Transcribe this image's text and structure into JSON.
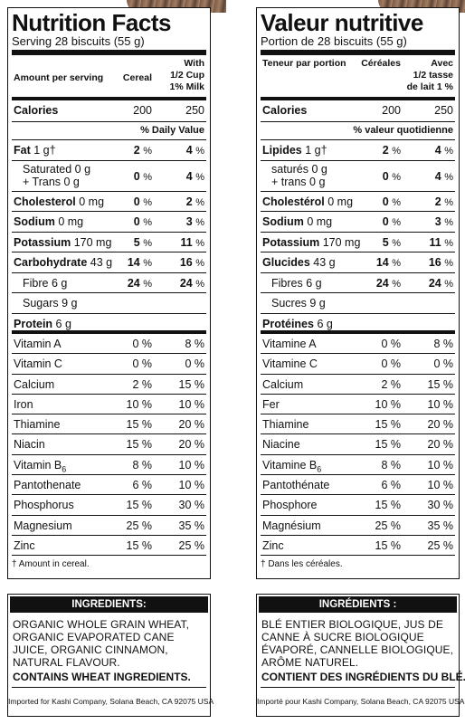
{
  "en": {
    "title": "Nutrition Facts",
    "serving": "Serving 28 biscuits (55 g)",
    "header": {
      "amount": "Amount per serving",
      "col1": "Cereal",
      "col2_l1": "With",
      "col2_l2": "1/2 Cup",
      "col2_l3": "1% Milk"
    },
    "calories": {
      "label": "Calories",
      "v1": "200",
      "v2": "250"
    },
    "daily_value": "% Daily Value",
    "nutrients": [
      {
        "label": "Fat",
        "amount": "1 g†",
        "v1": "2",
        "v2": "4"
      },
      {
        "label_l1": "Saturated 0 g",
        "label_l2": "+ Trans 0 g",
        "v1": "0",
        "v2": "4"
      },
      {
        "label": "Cholesterol",
        "amount": "0 mg",
        "v1": "0",
        "v2": "2"
      },
      {
        "label": "Sodium",
        "amount": "0 mg",
        "v1": "0",
        "v2": "3"
      },
      {
        "label": "Potassium",
        "amount": "170 mg",
        "v1": "5",
        "v2": "11"
      },
      {
        "label": "Carbohydrate",
        "amount": "43 g",
        "v1": "14",
        "v2": "16"
      },
      {
        "label": "Fibre 6 g",
        "v1": "24",
        "v2": "24"
      },
      {
        "label": "Sugars 9 g"
      },
      {
        "label": "Protein",
        "amount": "6 g"
      }
    ],
    "vitamins": [
      {
        "label": "Vitamin A",
        "v1": "0 %",
        "v2": "8 %"
      },
      {
        "label": "Vitamin C",
        "v1": "0 %",
        "v2": "0 %"
      },
      {
        "label": "Calcium",
        "v1": "2 %",
        "v2": "15 %"
      },
      {
        "label": "Iron",
        "v1": "10 %",
        "v2": "10 %"
      },
      {
        "label": "Thiamine",
        "v1": "15 %",
        "v2": "20 %"
      },
      {
        "label": "Niacin",
        "v1": "15 %",
        "v2": "20 %"
      },
      {
        "label": "Vitamin B",
        "sub": "6",
        "v1": "8 %",
        "v2": "10 %"
      },
      {
        "label": "Pantothenate",
        "v1": "6 %",
        "v2": "10 %"
      },
      {
        "label": "Phosphorus",
        "v1": "15 %",
        "v2": "30 %"
      },
      {
        "label": "Magnesium",
        "v1": "25 %",
        "v2": "35 %"
      },
      {
        "label": "Zinc",
        "v1": "15 %",
        "v2": "25 %"
      }
    ],
    "footnote": "† Amount in cereal.",
    "ingredients": {
      "heading": "INGREDIENTS:",
      "text": "ORGANIC WHOLE GRAIN WHEAT, ORGANIC EVAPORATED CANE JUICE, ORGANIC CINNAMON, NATURAL FLAVOUR.",
      "contains": "CONTAINS WHEAT INGREDIENTS.",
      "imported": "Imported for Kashi Company, Solana Beach, CA 92075  USA"
    }
  },
  "fr": {
    "title": "Valeur nutritive",
    "serving": "Portion de 28 biscuits (55 g)",
    "header": {
      "amount": "Teneur par portion",
      "col1": "Céréales",
      "col2_l1": "Avec",
      "col2_l2": "1/2 tasse",
      "col2_l3": "de lait 1 %"
    },
    "calories": {
      "label": "Calories",
      "v1": "200",
      "v2": "250"
    },
    "daily_value": "% valeur quotidienne",
    "nutrients": [
      {
        "label": "Lipides",
        "amount": "1 g†",
        "v1": "2",
        "v2": "4"
      },
      {
        "label_l1": "saturés 0 g",
        "label_l2": "+ trans 0 g",
        "v1": "0",
        "v2": "4"
      },
      {
        "label": "Cholestérol",
        "amount": "0 mg",
        "v1": "0",
        "v2": "2"
      },
      {
        "label": "Sodium",
        "amount": "0 mg",
        "v1": "0",
        "v2": "3"
      },
      {
        "label": "Potassium",
        "amount": "170 mg",
        "v1": "5",
        "v2": "11"
      },
      {
        "label": "Glucides",
        "amount": "43 g",
        "v1": "14",
        "v2": "16"
      },
      {
        "label": "Fibres 6 g",
        "v1": "24",
        "v2": "24"
      },
      {
        "label": "Sucres 9 g"
      },
      {
        "label": "Protéines",
        "amount": "6 g"
      }
    ],
    "vitamins": [
      {
        "label": "Vitamine A",
        "v1": "0 %",
        "v2": "8 %"
      },
      {
        "label": "Vitamine C",
        "v1": "0 %",
        "v2": "0 %"
      },
      {
        "label": "Calcium",
        "v1": "2 %",
        "v2": "15 %"
      },
      {
        "label": "Fer",
        "v1": "10 %",
        "v2": "10 %"
      },
      {
        "label": "Thiamine",
        "v1": "15 %",
        "v2": "20 %"
      },
      {
        "label": "Niacine",
        "v1": "15 %",
        "v2": "20 %"
      },
      {
        "label": "Vitamine B",
        "sub": "6",
        "v1": "8 %",
        "v2": "10 %"
      },
      {
        "label": "Pantothénate",
        "v1": "6 %",
        "v2": "10 %"
      },
      {
        "label": "Phosphore",
        "v1": "15 %",
        "v2": "30 %"
      },
      {
        "label": "Magnésium",
        "v1": "25 %",
        "v2": "35 %"
      },
      {
        "label": "Zinc",
        "v1": "15 %",
        "v2": "25 %"
      }
    ],
    "footnote": "† Dans les céréales.",
    "ingredients": {
      "heading": "INGRÉDIENTS :",
      "text": "BLÉ ENTIER BIOLOGIQUE, JUS DE CANNE À SUCRE BIOLOGIQUE ÉVAPORÉ, CANNELLE BIOLOGIQUE, ARÔME NATUREL.",
      "contains": "CONTIENT DES INGRÉDIENTS DU BLÉ.",
      "imported": "Importé pour Kashi Company, Solana Beach, CA 92075  USA"
    }
  }
}
